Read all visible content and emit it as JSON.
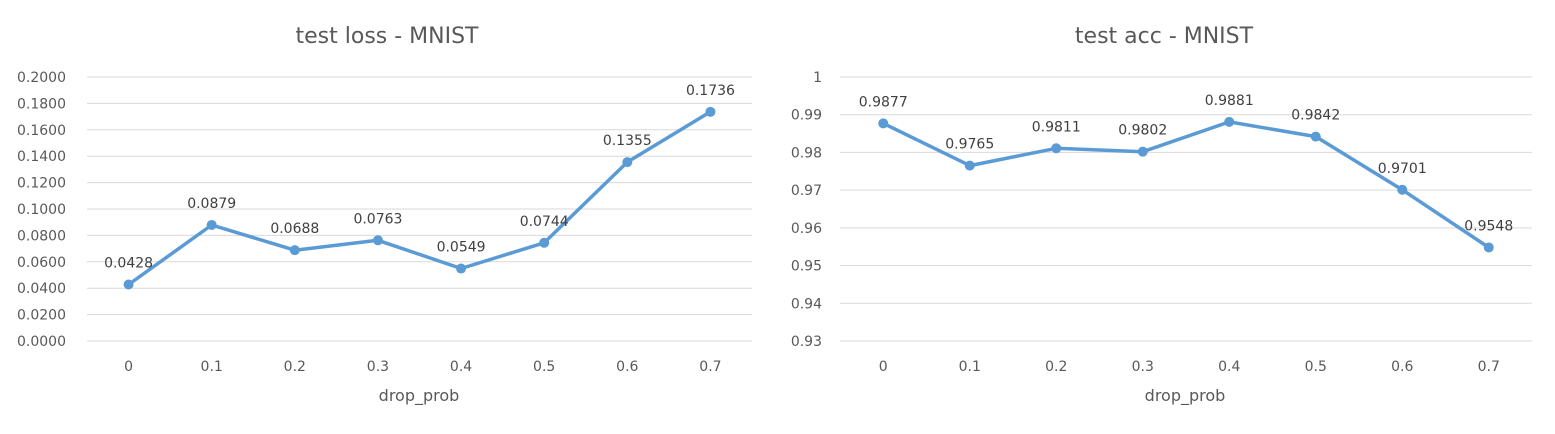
{
  "chart_data": [
    {
      "type": "line",
      "title": "test loss - MNIST",
      "xlabel": "drop_prob",
      "ylabel": "",
      "categories": [
        "0",
        "0.1",
        "0.2",
        "0.3",
        "0.4",
        "0.5",
        "0.6",
        "0.7"
      ],
      "series": [
        {
          "values": [
            0.0428,
            0.0879,
            0.0688,
            0.0763,
            0.0549,
            0.0744,
            0.1355,
            0.1736
          ],
          "labels": [
            "0.0428",
            "0.0879",
            "0.0688",
            "0.0763",
            "0.0549",
            "0.0744",
            "0.1355",
            "0.1736"
          ]
        }
      ],
      "ylim": [
        0,
        0.2
      ],
      "yticks": [
        "0.0000",
        "0.0200",
        "0.0400",
        "0.0600",
        "0.0800",
        "0.1000",
        "0.1200",
        "0.1400",
        "0.1600",
        "0.1800",
        "0.2000"
      ],
      "grid": true,
      "color": "#5b9bd5"
    },
    {
      "type": "line",
      "title": "test acc - MNIST",
      "xlabel": "drop_prob",
      "ylabel": "",
      "categories": [
        "0",
        "0.1",
        "0.2",
        "0.3",
        "0.4",
        "0.5",
        "0.6",
        "0.7"
      ],
      "series": [
        {
          "values": [
            0.9877,
            0.9765,
            0.9811,
            0.9802,
            0.9881,
            0.9842,
            0.9701,
            0.9548
          ],
          "labels": [
            "0.9877",
            "0.9765",
            "0.9811",
            "0.9802",
            "0.9881",
            "0.9842",
            "0.9701",
            "0.9548"
          ]
        }
      ],
      "ylim": [
        0.93,
        1
      ],
      "yticks": [
        "0.93",
        "0.94",
        "0.95",
        "0.96",
        "0.97",
        "0.98",
        "0.99",
        "1"
      ],
      "grid": true,
      "color": "#5b9bd5"
    }
  ]
}
